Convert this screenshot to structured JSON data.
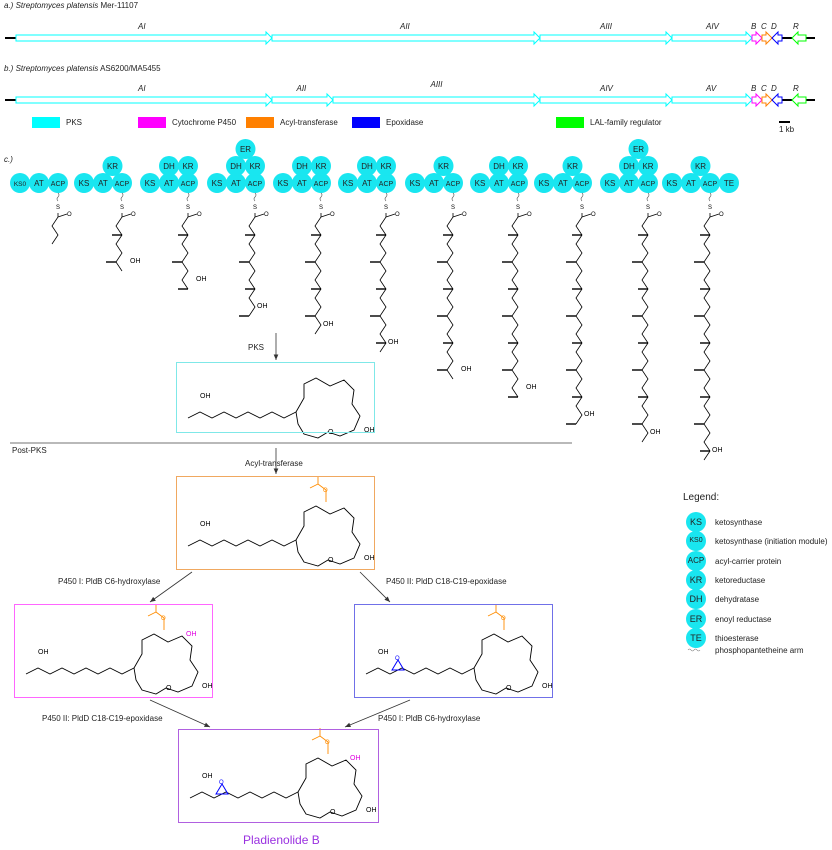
{
  "section_a": {
    "label_prefix": "a.)",
    "species": "Streptomyces platensis",
    "strain": "Mer-11107",
    "genes": [
      {
        "name": "AI",
        "type": "PKS"
      },
      {
        "name": "AII",
        "type": "PKS"
      },
      {
        "name": "AIII",
        "type": "PKS"
      },
      {
        "name": "AIV",
        "type": "PKS"
      },
      {
        "name": "B",
        "type": "P450"
      },
      {
        "name": "C",
        "type": "Acyl"
      },
      {
        "name": "D",
        "type": "Epox"
      },
      {
        "name": "R",
        "type": "LAL"
      }
    ]
  },
  "section_b": {
    "label_prefix": "b.)",
    "species": "Streptomyces platensis",
    "strain": "AS6200/MA5455",
    "genes": [
      {
        "name": "AI",
        "type": "PKS"
      },
      {
        "name": "AII",
        "type": "PKS"
      },
      {
        "name": "AIII",
        "type": "PKS"
      },
      {
        "name": "AIV",
        "type": "PKS"
      },
      {
        "name": "AV",
        "type": "PKS"
      },
      {
        "name": "B",
        "type": "P450"
      },
      {
        "name": "C",
        "type": "Acyl"
      },
      {
        "name": "D",
        "type": "Epox"
      },
      {
        "name": "R",
        "type": "LAL"
      }
    ]
  },
  "gene_legend": [
    {
      "label": "PKS",
      "color": "#00ffff"
    },
    {
      "label": "Cytochrome P450",
      "color": "#ff00ff"
    },
    {
      "label": "Acyl-transferase",
      "color": "#ff8000"
    },
    {
      "label": "Epoxidase",
      "color": "#0000ff"
    },
    {
      "label": "LAL-family regulator",
      "color": "#00ff00"
    }
  ],
  "scale_bar": "1 kb",
  "section_c": {
    "label_prefix": "c.)",
    "modules": [
      {
        "top": [],
        "mid": [],
        "base": [
          "KS0",
          "AT",
          "ACP"
        ]
      },
      {
        "top": [],
        "mid": [
          "KR"
        ],
        "base": [
          "KS",
          "AT",
          "ACP"
        ]
      },
      {
        "top": [],
        "mid": [
          "DH",
          "KR"
        ],
        "base": [
          "KS",
          "AT",
          "ACP"
        ]
      },
      {
        "top": [
          "ER"
        ],
        "mid": [
          "DH",
          "KR"
        ],
        "base": [
          "KS",
          "AT",
          "ACP"
        ]
      },
      {
        "top": [],
        "mid": [
          "DH",
          "KR"
        ],
        "base": [
          "KS",
          "AT",
          "ACP"
        ]
      },
      {
        "top": [],
        "mid": [
          "DH",
          "KR"
        ],
        "base": [
          "KS",
          "AT",
          "ACP"
        ]
      },
      {
        "top": [],
        "mid": [
          "KR"
        ],
        "base": [
          "KS",
          "AT",
          "ACP"
        ]
      },
      {
        "top": [],
        "mid": [
          "DH",
          "KR"
        ],
        "base": [
          "KS",
          "AT",
          "ACP"
        ]
      },
      {
        "top": [],
        "mid": [
          "KR"
        ],
        "base": [
          "KS",
          "AT",
          "ACP"
        ]
      },
      {
        "top": [
          "ER"
        ],
        "mid": [
          "DH",
          "KR"
        ],
        "base": [
          "KS",
          "AT",
          "ACP"
        ]
      },
      {
        "top": [],
        "mid": [
          "KR"
        ],
        "base": [
          "KS",
          "AT",
          "ACP",
          "TE"
        ]
      }
    ],
    "atom_labels": {
      "S": "S",
      "O": "O",
      "OH": "OH"
    }
  },
  "flow": {
    "pks_label": "PKS",
    "post_pks_label": "Post-PKS",
    "acyl_label": "Acyl-transferase",
    "left_step1": "P450 I: PldB C6-hydroxylase",
    "right_step1": "P450 II: PldD C18-C19-epoxidase",
    "left_step2": "P450 II: PldD C18-C19-epoxidase",
    "right_step2": "P450 I: PldB C6-hydroxylase",
    "product_name": "Pladienolide B",
    "box_colors": {
      "pks": "#7fe8e8",
      "acyl": "#f0a860",
      "p450": "#ff66ff",
      "epox": "#7070e8",
      "final": "#b060e0"
    },
    "acetyl_color": "#ff8c00",
    "hydroxyl_color": "#e000e0",
    "epoxide_color": "#0000ff"
  },
  "domain_legend": {
    "title": "Legend:",
    "items": [
      {
        "domain": "KS",
        "desc": "ketosynthase"
      },
      {
        "domain": "KS0",
        "desc": "ketosynthase (initiation module)"
      },
      {
        "domain": "ACP",
        "desc": "acyl-carrier protein"
      },
      {
        "domain": "KR",
        "desc": "ketoreductase"
      },
      {
        "domain": "DH",
        "desc": "dehydratase"
      },
      {
        "domain": "ER",
        "desc": "enoyl reductase"
      },
      {
        "domain": "TE",
        "desc": "thioesterase"
      }
    ],
    "arm_desc": "phosphopantetheine arm"
  }
}
